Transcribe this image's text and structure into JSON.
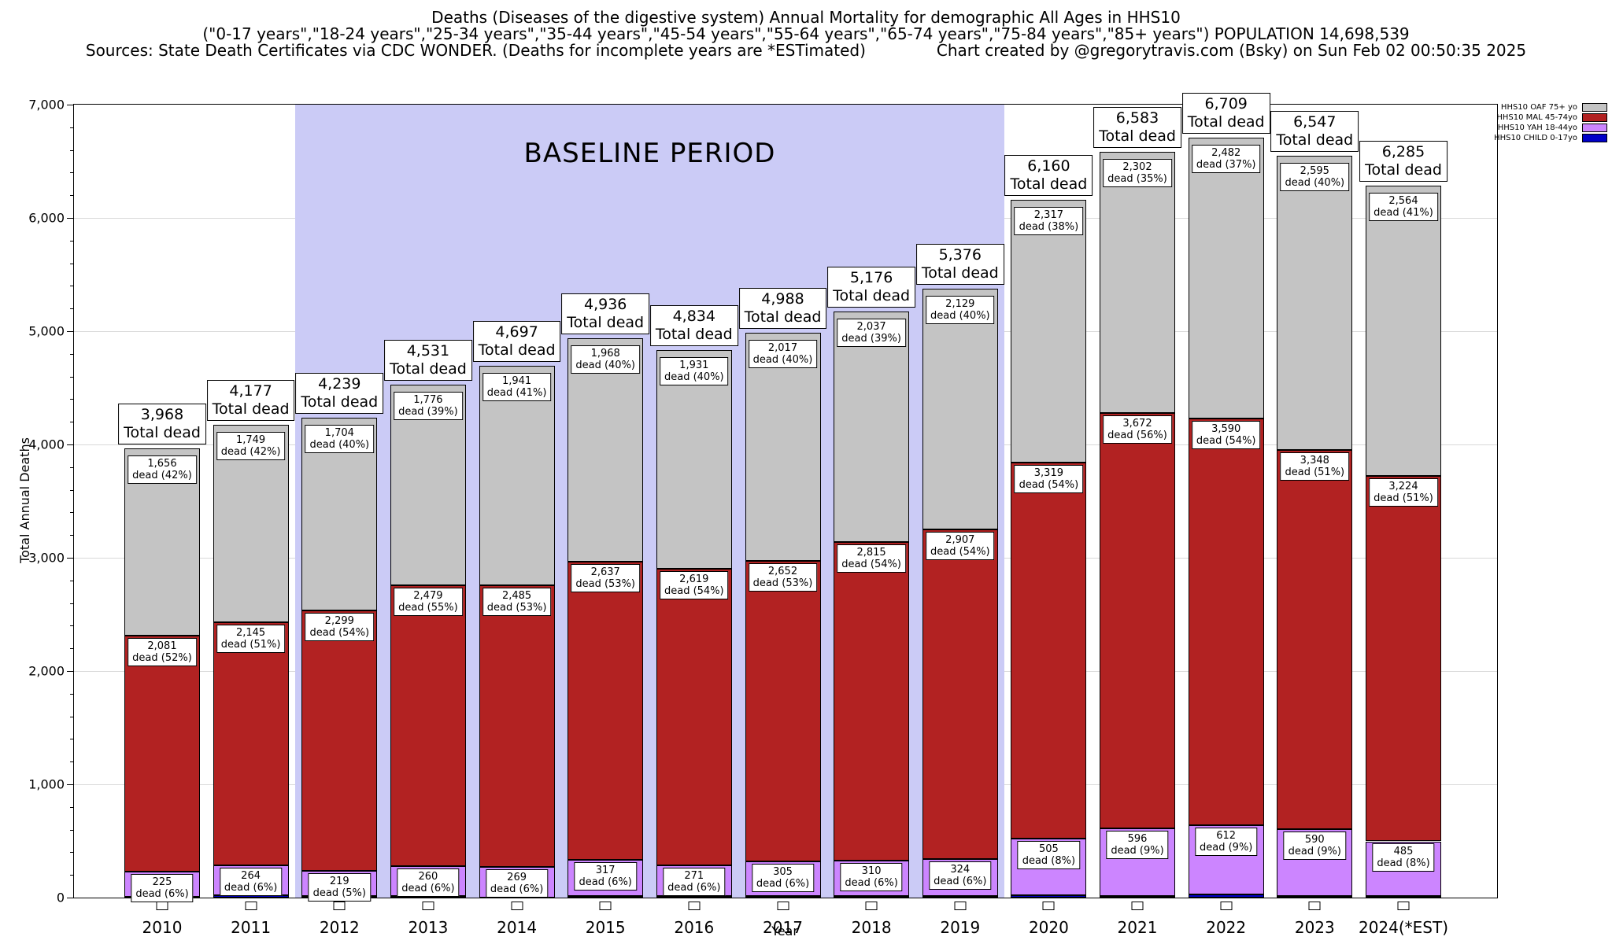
{
  "header": {
    "title": "Deaths (Diseases of the digestive system) Annual Mortality for demographic All Ages in HHS10",
    "subtitle": "(\"0-17 years\",\"18-24 years\",\"25-34 years\",\"35-44 years\",\"45-54 years\",\"55-64 years\",\"65-74 years\",\"75-84 years\",\"85+ years\") POPULATION 14,698,539",
    "sources": "Sources: State Death Certificates via CDC WONDER. (Deaths for incomplete years are *ESTimated)",
    "credit": "Chart created by @gregorytravis.com (Bsky) on Sun Feb 02 00:50:35 2025"
  },
  "labels": {
    "total_dead": "Total dead",
    "dead_prefix": "dead"
  },
  "chart_data": {
    "type": "bar",
    "stacked": true,
    "title": "Deaths (Diseases of the digestive system) Annual Mortality for demographic All Ages in HHS10",
    "xlabel": "Year",
    "ylabel": "Total Annual Deaths",
    "ylim": [
      0,
      7000
    ],
    "ytick_step": 1000,
    "grid": true,
    "legend_position": "top-right",
    "baseline_period": {
      "label": "BASELINE PERIOD",
      "from": "2012",
      "to": "2019",
      "color": "#cbcbf6"
    },
    "categories": [
      "2010",
      "2011",
      "2012",
      "2013",
      "2014",
      "2015",
      "2016",
      "2017",
      "2018",
      "2019",
      "2020",
      "2021",
      "2022",
      "2023",
      "2024(*EST)"
    ],
    "totals": [
      3968,
      4177,
      4239,
      4531,
      4697,
      4936,
      4834,
      4988,
      5176,
      5376,
      6160,
      6583,
      6709,
      6547,
      6285
    ],
    "series": [
      {
        "name": "HHS10 OAF 75+ yo",
        "key": "oaf",
        "color": "#c4c4c4",
        "values": [
          1656,
          1749,
          1704,
          1776,
          1941,
          1968,
          1931,
          2017,
          2037,
          2129,
          2317,
          2302,
          2482,
          2595,
          2564
        ],
        "pct": [
          42,
          42,
          40,
          39,
          41,
          40,
          40,
          40,
          39,
          40,
          38,
          35,
          37,
          40,
          41
        ]
      },
      {
        "name": "HHS10 MAL 45-74yo",
        "key": "mal",
        "color": "#b22222",
        "values": [
          2081,
          2145,
          2299,
          2479,
          2485,
          2637,
          2619,
          2652,
          2815,
          2907,
          3319,
          3672,
          3590,
          3348,
          3224
        ],
        "pct": [
          52,
          51,
          54,
          55,
          53,
          53,
          54,
          53,
          54,
          54,
          54,
          56,
          54,
          51,
          51
        ]
      },
      {
        "name": "HHS10 YAH 18-44yo",
        "key": "yah",
        "color": "#cc85ff",
        "values": [
          225,
          264,
          219,
          260,
          269,
          317,
          271,
          305,
          310,
          324,
          505,
          596,
          612,
          590,
          485
        ],
        "pct": [
          6,
          6,
          5,
          6,
          6,
          6,
          6,
          6,
          6,
          6,
          8,
          9,
          9,
          9,
          8
        ]
      },
      {
        "name": "HHS10 CHILD 0-17yo",
        "key": "child",
        "color": "#0000c8",
        "values": null,
        "derived": "total_minus_other_series",
        "pct": null
      }
    ]
  }
}
